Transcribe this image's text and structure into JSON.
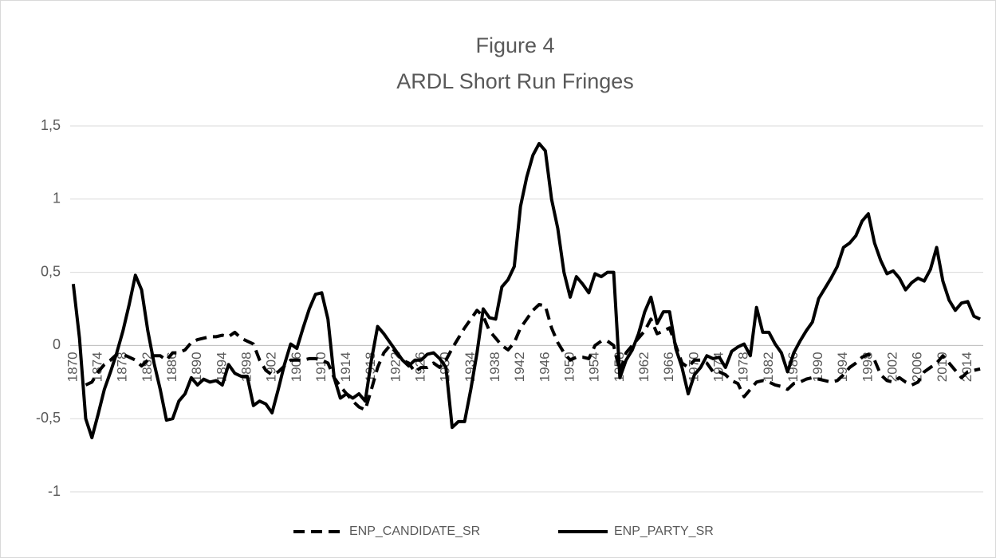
{
  "chart_data": {
    "type": "line",
    "title": "Figure 4",
    "subtitle": "ARDL Short Run Fringes",
    "categories": [
      1870,
      null,
      null,
      null,
      1874,
      null,
      null,
      null,
      1878,
      null,
      null,
      null,
      1882,
      null,
      null,
      null,
      1886,
      null,
      null,
      null,
      1890,
      null,
      null,
      null,
      1894,
      null,
      null,
      null,
      1898,
      null,
      null,
      null,
      1902,
      null,
      null,
      null,
      1906,
      null,
      null,
      null,
      1910,
      null,
      null,
      null,
      1914,
      null,
      null,
      null,
      1918,
      null,
      null,
      null,
      1922,
      null,
      null,
      null,
      1926,
      null,
      null,
      null,
      1930,
      null,
      null,
      null,
      1934,
      null,
      null,
      null,
      1938,
      null,
      null,
      null,
      1942,
      null,
      null,
      null,
      1946,
      null,
      null,
      null,
      1950,
      null,
      null,
      null,
      1954,
      null,
      null,
      null,
      1958,
      null,
      null,
      null,
      1962,
      null,
      null,
      null,
      1966,
      null,
      null,
      null,
      1970,
      null,
      null,
      null,
      1974,
      null,
      null,
      null,
      1978,
      null,
      null,
      null,
      1982,
      null,
      null,
      null,
      1986,
      null,
      null,
      null,
      1990,
      null,
      null,
      null,
      1994,
      null,
      null,
      null,
      1998,
      null,
      null,
      null,
      2002,
      null,
      null,
      null,
      2006,
      null,
      null,
      null,
      2010,
      null,
      null,
      null,
      2014,
      null,
      null
    ],
    "series": [
      {
        "name": "ENP_CANDIDATE_SR",
        "color": "#000000",
        "dash": true,
        "values": [
          null,
          null,
          -0.27,
          -0.25,
          -0.18,
          -0.13,
          -0.1,
          -0.06,
          -0.06,
          -0.08,
          -0.1,
          -0.14,
          -0.1,
          -0.07,
          -0.07,
          -0.1,
          -0.05,
          -0.05,
          -0.03,
          0.02,
          0.04,
          0.05,
          0.06,
          0.06,
          0.07,
          0.06,
          0.09,
          0.05,
          0.03,
          0.01,
          -0.1,
          -0.17,
          -0.2,
          -0.18,
          -0.14,
          -0.1,
          -0.1,
          -0.1,
          -0.09,
          -0.09,
          -0.1,
          -0.12,
          -0.22,
          -0.28,
          -0.33,
          -0.38,
          -0.42,
          -0.44,
          -0.3,
          -0.15,
          -0.05,
          0.0,
          -0.05,
          -0.1,
          -0.12,
          -0.18,
          -0.15,
          -0.15,
          -0.12,
          -0.15,
          -0.1,
          -0.02,
          0.05,
          0.12,
          0.18,
          0.24,
          0.2,
          0.1,
          0.05,
          0.0,
          -0.03,
          0.02,
          0.12,
          0.18,
          0.24,
          0.28,
          0.27,
          0.12,
          0.02,
          -0.05,
          -0.1,
          -0.08,
          -0.08,
          -0.09,
          0.0,
          0.03,
          0.03,
          0.0,
          -0.18,
          -0.05,
          0.0,
          0.05,
          0.1,
          0.18,
          0.08,
          0.1,
          0.12,
          0.0,
          -0.12,
          -0.15,
          -0.1,
          -0.1,
          -0.12,
          -0.18,
          -0.18,
          -0.2,
          -0.24,
          -0.26,
          -0.35,
          -0.3,
          -0.25,
          -0.24,
          -0.25,
          -0.27,
          -0.28,
          -0.3,
          -0.26,
          -0.25,
          -0.23,
          -0.22,
          -0.23,
          -0.24,
          -0.25,
          -0.24,
          -0.2,
          -0.15,
          -0.12,
          -0.08,
          -0.06,
          -0.1,
          -0.2,
          -0.24,
          -0.25,
          -0.22,
          -0.25,
          -0.27,
          -0.25,
          -0.18,
          -0.15,
          -0.12,
          -0.07,
          -0.12,
          -0.17,
          -0.22,
          -0.18,
          -0.17,
          -0.16
        ]
      },
      {
        "name": "ENP_PARTY_SR",
        "color": "#000000",
        "dash": false,
        "values": [
          0.42,
          0.05,
          -0.5,
          -0.63,
          -0.47,
          -0.3,
          -0.18,
          -0.05,
          0.1,
          0.28,
          0.48,
          0.38,
          0.1,
          -0.12,
          -0.3,
          -0.51,
          -0.5,
          -0.38,
          -0.33,
          -0.22,
          -0.27,
          -0.23,
          -0.25,
          -0.24,
          -0.27,
          -0.13,
          -0.19,
          -0.21,
          -0.21,
          -0.41,
          -0.38,
          -0.4,
          -0.46,
          -0.3,
          -0.13,
          0.01,
          -0.02,
          0.12,
          0.25,
          0.35,
          0.36,
          0.18,
          -0.22,
          -0.36,
          -0.33,
          -0.36,
          -0.33,
          -0.38,
          -0.1,
          0.13,
          0.08,
          0.02,
          -0.04,
          -0.1,
          -0.14,
          -0.1,
          -0.1,
          -0.06,
          -0.05,
          -0.09,
          -0.15,
          -0.56,
          -0.52,
          -0.52,
          -0.3,
          -0.05,
          0.25,
          0.19,
          0.18,
          0.4,
          0.45,
          0.54,
          0.95,
          1.15,
          1.3,
          1.38,
          1.33,
          1.0,
          0.8,
          0.5,
          0.33,
          0.47,
          0.42,
          0.36,
          0.49,
          0.47,
          0.5,
          0.5,
          -0.22,
          -0.1,
          -0.03,
          0.08,
          0.23,
          0.33,
          0.15,
          0.23,
          0.23,
          -0.02,
          -0.15,
          -0.33,
          -0.2,
          -0.15,
          -0.07,
          -0.09,
          -0.08,
          -0.15,
          -0.04,
          -0.01,
          0.01,
          -0.07,
          0.26,
          0.09,
          0.09,
          0.01,
          -0.05,
          -0.18,
          -0.05,
          0.03,
          0.1,
          0.16,
          0.32,
          0.39,
          0.46,
          0.54,
          0.67,
          0.7,
          0.75,
          0.85,
          0.9,
          0.7,
          0.58,
          0.49,
          0.51,
          0.46,
          0.38,
          0.43,
          0.46,
          0.44,
          0.52,
          0.67,
          0.44,
          0.31,
          0.24,
          0.29,
          0.3,
          0.2,
          0.18
        ]
      }
    ],
    "ylim": [
      -1,
      1.5
    ],
    "yticks": [
      -1,
      {
        "value": -0.5,
        "label": "-0,5"
      },
      0,
      {
        "value": 0.5,
        "label": "0,5"
      },
      1,
      {
        "value": 1.5,
        "label": "1,5"
      }
    ],
    "grid": true,
    "legend": "bottom"
  }
}
